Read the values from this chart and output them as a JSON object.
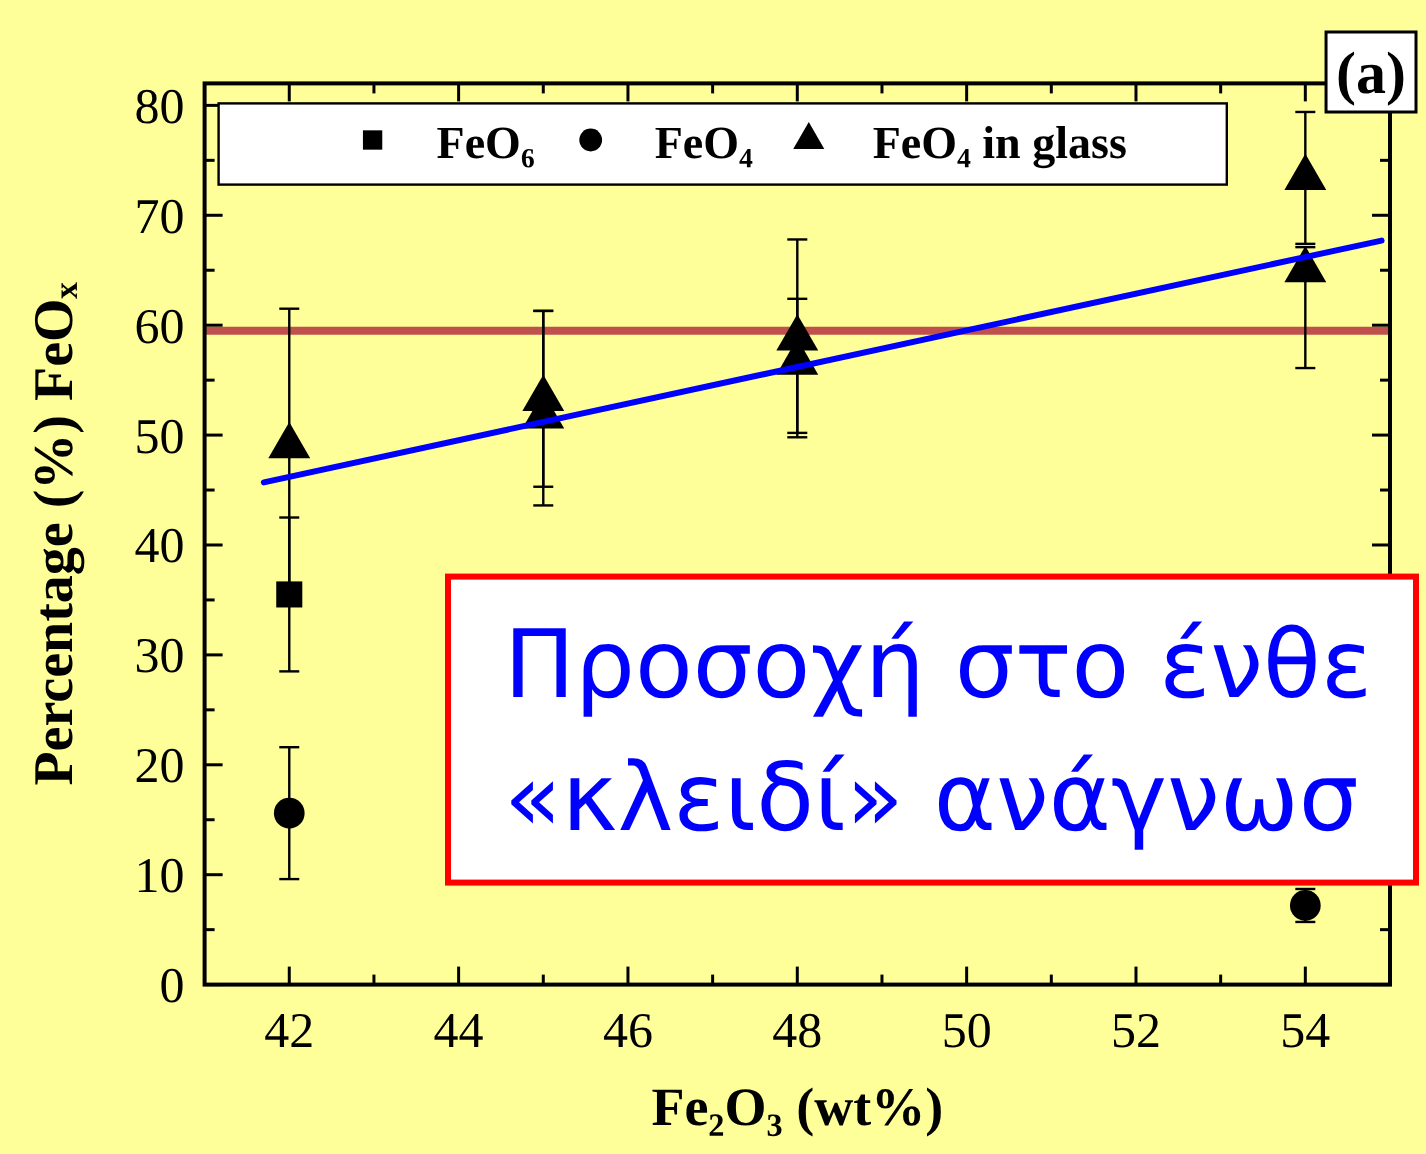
{
  "chart_data": {
    "type": "scatter",
    "xlabel": "Fe₂O₃ (wt%)",
    "ylabel": "Percentage (%) FeOₓ",
    "xlim": [
      41,
      55
    ],
    "ylim": [
      0,
      82
    ],
    "xticks": [
      42,
      {
        "value": 43,
        "label": null
      },
      44,
      {
        "value": 45,
        "label": null
      },
      46,
      {
        "value": 47,
        "label": null
      },
      48,
      {
        "value": 49,
        "label": null
      },
      50,
      {
        "value": 51,
        "label": null
      },
      52,
      {
        "value": 53,
        "label": null
      },
      54
    ],
    "yticks": [
      0,
      {
        "value": 5,
        "label": null
      },
      10,
      {
        "value": 15,
        "label": null
      },
      20,
      {
        "value": 25,
        "label": null
      },
      30,
      {
        "value": 35,
        "label": null
      },
      40,
      {
        "value": 45,
        "label": null
      },
      50,
      {
        "value": 55,
        "label": null
      },
      60,
      {
        "value": 65,
        "label": null
      },
      70,
      {
        "value": 75,
        "label": null
      },
      80
    ],
    "series": [
      {
        "name": "FeO₆",
        "color": "#000000",
        "marker": "square",
        "x": [
          42
        ],
        "values": [
          35.5
        ],
        "errors": [
          7
        ]
      },
      {
        "name": "FeO₄",
        "color": "#000000",
        "marker": "circle",
        "x": [
          42,
          54
        ],
        "values": [
          15.6,
          7.2
        ],
        "errors": [
          6,
          1.5
        ]
      },
      {
        "name": "FeO₄ in glass",
        "color": "#000000",
        "marker": "triangle",
        "x": [
          42,
          45,
          45,
          48,
          48,
          54,
          54
        ],
        "values": [
          49,
          53.3,
          51.7,
          58.8,
          56.6,
          73.4,
          65
        ],
        "errors": [
          12.5,
          8,
          [
            43.6,
            61.3
          ],
          9,
          [
            50.2,
            62.4
          ],
          6,
          [
            56.1,
            67.1
          ]
        ]
      },
      {
        "type": "line",
        "color": "#0000ff",
        "marker": "none",
        "x": [
          41.7,
          54.9
        ],
        "values": [
          45.7,
          67.7
        ]
      }
    ],
    "ref_lines": [
      {
        "axis": "y",
        "value": 59.5,
        "color": "#c0504d"
      }
    ],
    "annotations": [
      "Προσοχή στο ένθε\n«κλειδί» ανάγνωσ",
      "(a)"
    ],
    "legend": "top"
  }
}
